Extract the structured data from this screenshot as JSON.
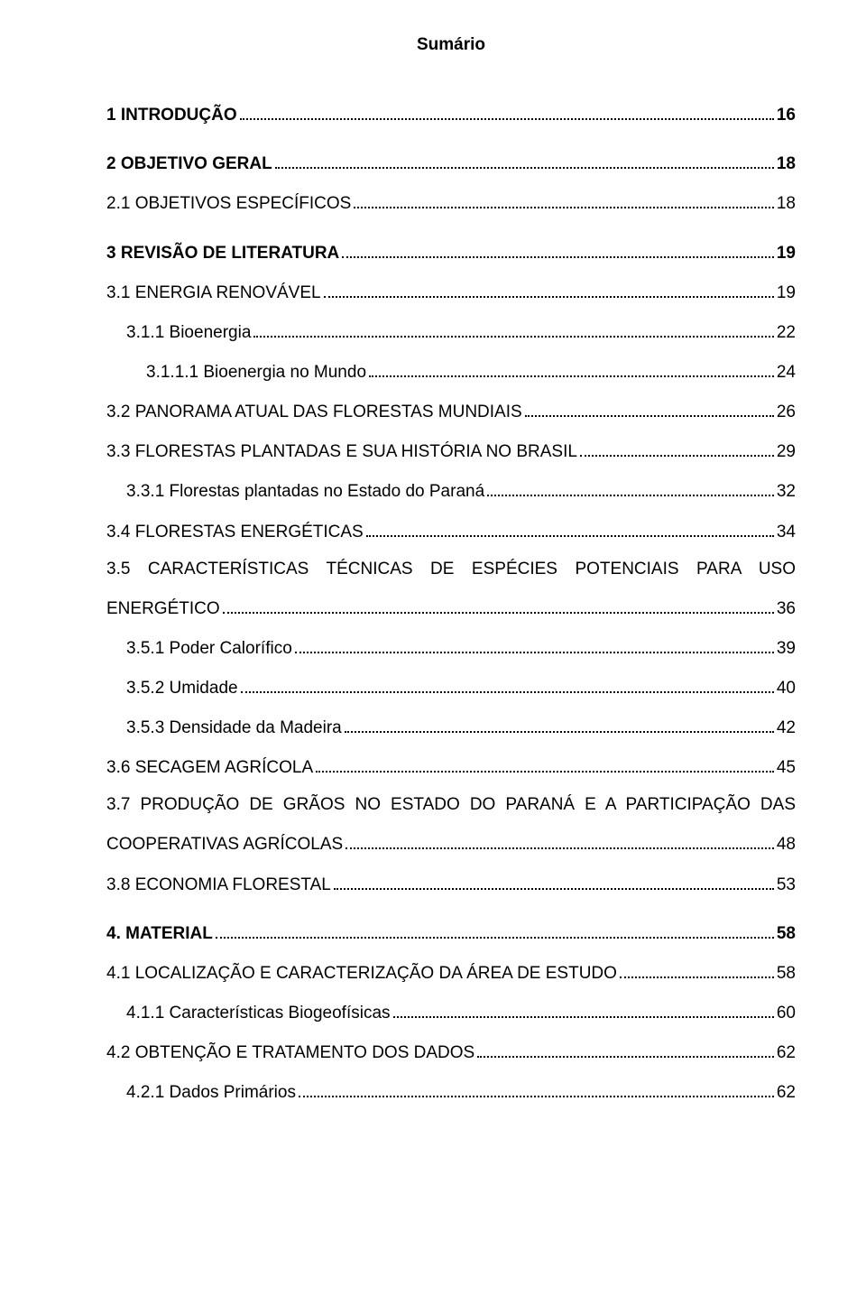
{
  "title": "Sumário",
  "entries": [
    {
      "label": "1 INTRODUÇÃO",
      "page": "16",
      "bold": true,
      "indent": 0,
      "gap": false,
      "multi": false
    },
    {
      "label": "2 OBJETIVO GERAL",
      "page": "18",
      "bold": true,
      "indent": 0,
      "gap": true,
      "multi": false
    },
    {
      "label": "2.1 OBJETIVOS ESPECÍFICOS",
      "page": "18",
      "bold": false,
      "indent": 0,
      "gap": false,
      "multi": false
    },
    {
      "label": "3 REVISÃO DE LITERATURA",
      "page": "19",
      "bold": true,
      "indent": 0,
      "gap": true,
      "multi": false
    },
    {
      "label": "3.1 ENERGIA RENOVÁVEL",
      "page": "19",
      "bold": false,
      "indent": 0,
      "gap": false,
      "multi": false
    },
    {
      "label": "3.1.1 Bioenergia",
      "page": "22",
      "bold": false,
      "indent": 1,
      "gap": false,
      "multi": false
    },
    {
      "label": "3.1.1.1 Bioenergia no Mundo",
      "page": "24",
      "bold": false,
      "indent": 2,
      "gap": false,
      "multi": false
    },
    {
      "label": "3.2 PANORAMA ATUAL DAS FLORESTAS MUNDIAIS",
      "page": "26",
      "bold": false,
      "indent": 0,
      "gap": false,
      "multi": false
    },
    {
      "label": "3.3 FLORESTAS PLANTADAS E SUA HISTÓRIA NO BRASIL",
      "page": "29",
      "bold": false,
      "indent": 0,
      "gap": false,
      "multi": false
    },
    {
      "label": "3.3.1 Florestas plantadas no Estado do Paraná",
      "page": "32",
      "bold": false,
      "indent": 1,
      "gap": false,
      "multi": false
    },
    {
      "label": "3.4 FLORESTAS ENERGÉTICAS",
      "page": "34",
      "bold": false,
      "indent": 0,
      "gap": false,
      "multi": false
    },
    {
      "label_line1": "3.5 CARACTERÍSTICAS TÉCNICAS DE ESPÉCIES POTENCIAIS PARA USO",
      "label_line2": "ENERGÉTICO",
      "page": "36",
      "bold": false,
      "indent": 0,
      "gap": false,
      "multi": true
    },
    {
      "label": "3.5.1 Poder Calorífico",
      "page": "39",
      "bold": false,
      "indent": 1,
      "gap": false,
      "multi": false
    },
    {
      "label": "3.5.2 Umidade",
      "page": "40",
      "bold": false,
      "indent": 1,
      "gap": false,
      "multi": false
    },
    {
      "label": "3.5.3 Densidade da Madeira",
      "page": "42",
      "bold": false,
      "indent": 1,
      "gap": false,
      "multi": false
    },
    {
      "label": "3.6 SECAGEM AGRÍCOLA",
      "page": "45",
      "bold": false,
      "indent": 0,
      "gap": false,
      "multi": false
    },
    {
      "label_line1": "3.7 PRODUÇÃO DE GRÃOS NO ESTADO DO PARANÁ E A PARTICIPAÇÃO DAS",
      "label_line2": "COOPERATIVAS AGRÍCOLAS",
      "page": "48",
      "bold": false,
      "indent": 0,
      "gap": false,
      "multi": true
    },
    {
      "label": "3.8 ECONOMIA FLORESTAL",
      "page": "53",
      "bold": false,
      "indent": 0,
      "gap": false,
      "multi": false
    },
    {
      "label": "4. MATERIAL",
      "page": "58",
      "bold": true,
      "indent": 0,
      "gap": true,
      "multi": false
    },
    {
      "label": "4.1 LOCALIZAÇÃO E CARACTERIZAÇÃO DA ÁREA DE ESTUDO",
      "page": "58",
      "bold": false,
      "indent": 0,
      "gap": false,
      "multi": false
    },
    {
      "label": "4.1.1 Características Biogeofísicas",
      "page": "60",
      "bold": false,
      "indent": 1,
      "gap": false,
      "multi": false
    },
    {
      "label": "4.2 OBTENÇÃO E TRATAMENTO DOS DADOS",
      "page": "62",
      "bold": false,
      "indent": 0,
      "gap": false,
      "multi": false
    },
    {
      "label": "4.2.1 Dados Primários",
      "page": "62",
      "bold": false,
      "indent": 1,
      "gap": false,
      "multi": false
    }
  ]
}
